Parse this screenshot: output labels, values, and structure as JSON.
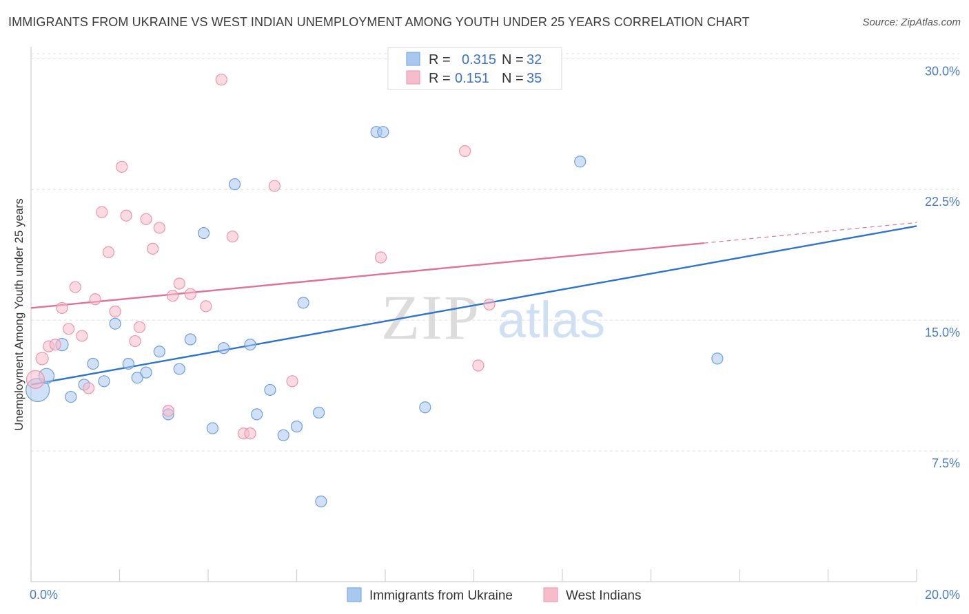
{
  "title": "IMMIGRANTS FROM UKRAINE VS WEST INDIAN UNEMPLOYMENT AMONG YOUTH UNDER 25 YEARS CORRELATION CHART",
  "source": "Source: ZipAtlas.com",
  "watermark": {
    "zip": "ZIP",
    "atlas": "atlas"
  },
  "chart_data": {
    "type": "scatter",
    "xlim": [
      0,
      20
    ],
    "ylim": [
      0,
      31
    ],
    "ylabel": "Unemployment Among Youth under 25 years",
    "xlabel": "",
    "x_tick_labels": [
      {
        "value": 0,
        "label": "0.0%"
      },
      {
        "value": 20,
        "label": "20.0%"
      }
    ],
    "x_minor_ticks": [
      0,
      2,
      4,
      6,
      8,
      10,
      12,
      14,
      16,
      18,
      20
    ],
    "y_ticks": [
      {
        "value": 7.5,
        "label": "7.5%"
      },
      {
        "value": 15,
        "label": "15.0%"
      },
      {
        "value": 22.5,
        "label": "22.5%"
      },
      {
        "value": 30,
        "label": "30.0%"
      }
    ],
    "legend": {
      "rows": [
        {
          "r_label": "R =",
          "r_value": "0.315",
          "n_label": "N =",
          "n_value": "32"
        },
        {
          "r_label": "R =",
          "r_value": "0.151",
          "n_label": "N =",
          "n_value": "35"
        }
      ]
    },
    "series": [
      {
        "name": "Immigrants from Ukraine",
        "color": "#a9c8f0",
        "stroke": "#6f9fd8",
        "line_color": "#2f74cc",
        "trend": {
          "x0": 0,
          "y0": 11.3,
          "x1": 20,
          "y1": 20.4,
          "solid_until": 20
        },
        "points": [
          [
            0.15,
            11.0,
            34
          ],
          [
            0.35,
            11.8,
            22
          ],
          [
            0.7,
            13.6,
            18
          ],
          [
            0.9,
            10.6,
            16
          ],
          [
            1.2,
            11.3,
            16
          ],
          [
            1.4,
            12.5,
            16
          ],
          [
            1.65,
            11.5,
            16
          ],
          [
            1.9,
            14.8,
            16
          ],
          [
            2.2,
            12.5,
            16
          ],
          [
            2.4,
            11.7,
            16
          ],
          [
            2.6,
            12.0,
            16
          ],
          [
            2.9,
            13.2,
            16
          ],
          [
            3.1,
            9.6,
            16
          ],
          [
            3.35,
            12.2,
            16
          ],
          [
            3.6,
            13.9,
            16
          ],
          [
            3.9,
            20.0,
            16
          ],
          [
            4.1,
            8.8,
            16
          ],
          [
            4.35,
            13.4,
            16
          ],
          [
            4.6,
            22.8,
            16
          ],
          [
            4.95,
            13.6,
            16
          ],
          [
            5.1,
            9.6,
            16
          ],
          [
            5.4,
            11.0,
            16
          ],
          [
            5.7,
            8.4,
            16
          ],
          [
            6.0,
            8.9,
            16
          ],
          [
            6.15,
            16.0,
            16
          ],
          [
            6.5,
            9.7,
            16
          ],
          [
            6.55,
            4.6,
            16
          ],
          [
            7.8,
            25.8,
            16
          ],
          [
            7.95,
            25.8,
            16
          ],
          [
            8.9,
            10.0,
            16
          ],
          [
            12.4,
            24.1,
            16
          ],
          [
            15.5,
            12.8,
            16
          ]
        ]
      },
      {
        "name": "West Indians",
        "color": "#f7bccb",
        "stroke": "#e896ad",
        "line_color": "#e0719a",
        "trend": {
          "x0": 0,
          "y0": 15.7,
          "x1": 20,
          "y1": 20.6,
          "solid_until": 15.2
        },
        "points": [
          [
            0.1,
            11.6,
            26
          ],
          [
            0.25,
            12.8,
            18
          ],
          [
            0.4,
            13.5,
            16
          ],
          [
            0.55,
            13.6,
            16
          ],
          [
            0.7,
            15.7,
            16
          ],
          [
            0.85,
            14.5,
            16
          ],
          [
            1.0,
            16.9,
            16
          ],
          [
            1.15,
            14.1,
            16
          ],
          [
            1.3,
            11.1,
            16
          ],
          [
            1.45,
            16.2,
            16
          ],
          [
            1.6,
            21.2,
            16
          ],
          [
            1.75,
            18.9,
            16
          ],
          [
            1.9,
            15.5,
            16
          ],
          [
            2.05,
            23.8,
            16
          ],
          [
            2.15,
            21.0,
            16
          ],
          [
            2.35,
            13.8,
            16
          ],
          [
            2.45,
            14.6,
            16
          ],
          [
            2.6,
            20.8,
            16
          ],
          [
            2.75,
            19.1,
            16
          ],
          [
            2.9,
            20.3,
            16
          ],
          [
            3.1,
            9.8,
            16
          ],
          [
            3.2,
            16.4,
            16
          ],
          [
            3.35,
            17.1,
            16
          ],
          [
            3.6,
            16.5,
            16
          ],
          [
            3.95,
            15.8,
            16
          ],
          [
            4.3,
            28.8,
            16
          ],
          [
            4.55,
            19.8,
            16
          ],
          [
            4.8,
            8.5,
            16
          ],
          [
            4.95,
            8.5,
            16
          ],
          [
            5.5,
            22.7,
            16
          ],
          [
            5.9,
            11.5,
            16
          ],
          [
            7.9,
            18.6,
            16
          ],
          [
            9.8,
            24.7,
            16
          ],
          [
            10.1,
            12.4,
            16
          ],
          [
            10.35,
            15.9,
            16
          ]
        ]
      }
    ]
  }
}
